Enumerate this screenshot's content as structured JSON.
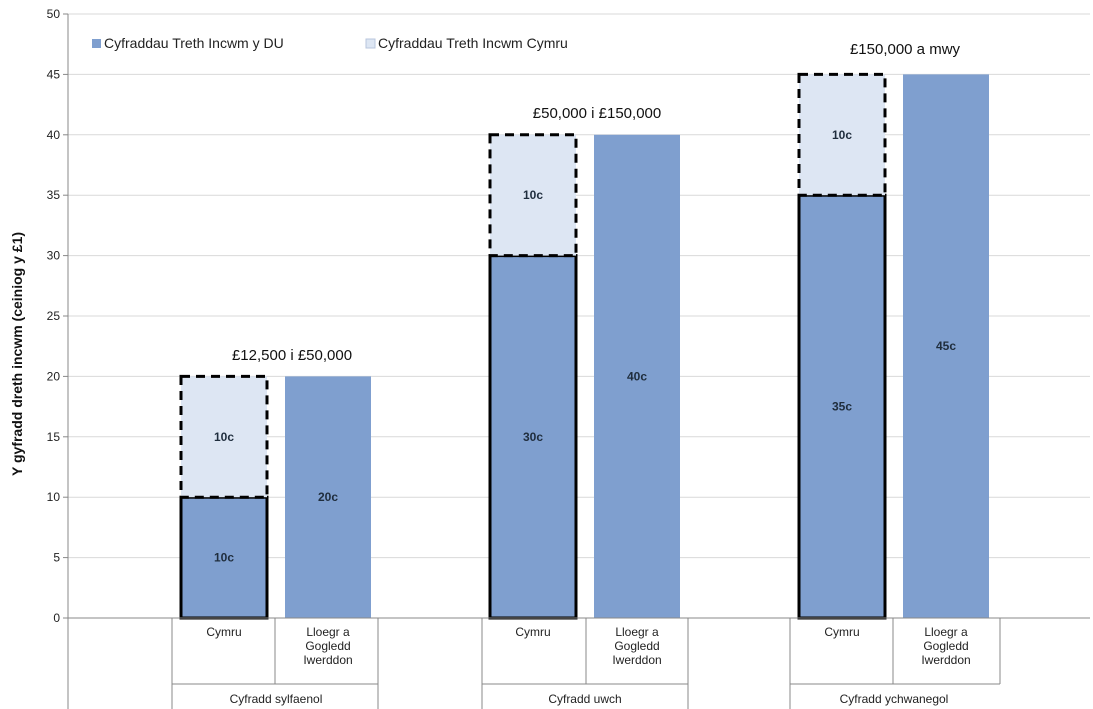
{
  "chart_data": {
    "type": "bar",
    "ylabel": "Y gyfradd dreth incwm (ceiniog y £1)",
    "ylim": [
      0,
      50
    ],
    "yticks": [
      0,
      5,
      10,
      15,
      20,
      25,
      30,
      35,
      40,
      45,
      50
    ],
    "legend_position": "top-left",
    "legend": [
      {
        "label": "Cyfraddau Treth Incwm y DU",
        "color": "#7f9fcf"
      },
      {
        "label": "Cyfraddau Treth Incwm Cymru",
        "color": "#dde6f3"
      }
    ],
    "groups": [
      {
        "name": "Cyfradd sylfaenol",
        "band": "£12,500 i £50,000",
        "bars": [
          {
            "category": "Cymru",
            "uk": 10,
            "uk_label": "10c",
            "wales": 10,
            "wales_label": "10c"
          },
          {
            "category": "Lloegr a Gogledd Iwerddon",
            "uk": 20,
            "uk_label": "20c"
          }
        ]
      },
      {
        "name": "Cyfradd uwch",
        "band": "£50,000 i £150,000",
        "bars": [
          {
            "category": "Cymru",
            "uk": 30,
            "uk_label": "30c",
            "wales": 10,
            "wales_label": "10c"
          },
          {
            "category": "Lloegr a Gogledd Iwerddon",
            "uk": 40,
            "uk_label": "40c"
          }
        ]
      },
      {
        "name": "Cyfradd ychwanegol",
        "band": "£150,000 a mwy",
        "bars": [
          {
            "category": "Cymru",
            "uk": 35,
            "uk_label": "35c",
            "wales": 10,
            "wales_label": "10c"
          },
          {
            "category": "Lloegr a Gogledd Iwerddon",
            "uk": 45,
            "uk_label": "45c"
          }
        ]
      }
    ]
  },
  "colors": {
    "uk_bar": "#7f9fcf",
    "wales_bar": "#dde6f3",
    "grid": "#d9d9d9",
    "axis": "#888888"
  }
}
